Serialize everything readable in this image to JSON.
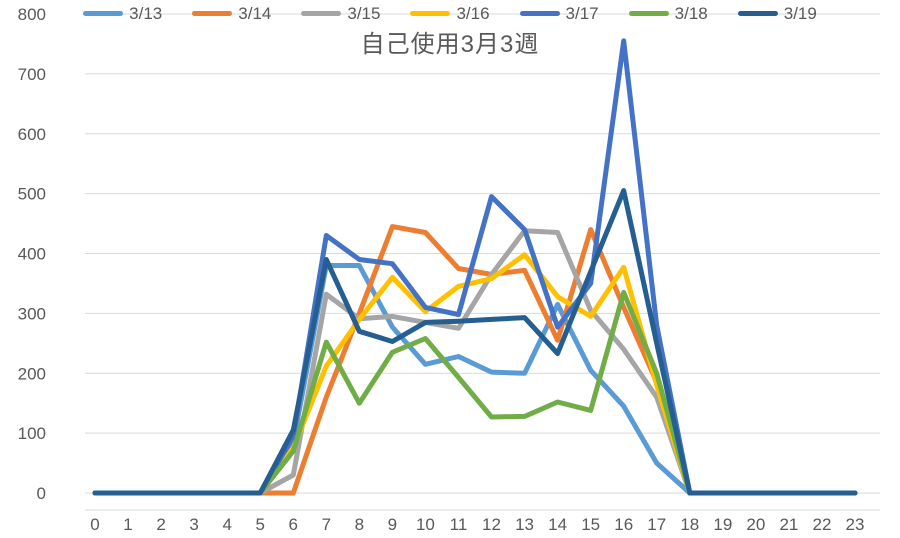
{
  "chart_data": {
    "type": "line",
    "title": "自己使用3月3週",
    "xlabel": "",
    "ylabel": "",
    "x": [
      0,
      1,
      2,
      3,
      4,
      5,
      6,
      7,
      8,
      9,
      10,
      11,
      12,
      13,
      14,
      15,
      16,
      17,
      18,
      19,
      20,
      21,
      22,
      23
    ],
    "ylim": [
      0,
      800
    ],
    "ytick_interval": 100,
    "grid": true,
    "legend_position": "top",
    "series": [
      {
        "name": "3/13",
        "color": "#5B9BD5",
        "values": [
          0,
          0,
          0,
          0,
          0,
          0,
          85,
          380,
          380,
          277,
          215,
          228,
          202,
          200,
          315,
          205,
          145,
          50,
          0,
          0,
          0,
          0,
          0,
          0
        ]
      },
      {
        "name": "3/14",
        "color": "#ED7D31",
        "values": [
          0,
          0,
          0,
          0,
          0,
          0,
          0,
          160,
          300,
          445,
          435,
          375,
          365,
          372,
          255,
          440,
          310,
          185,
          0,
          0,
          0,
          0,
          0,
          0
        ]
      },
      {
        "name": "3/15",
        "color": "#A5A5A5",
        "values": [
          0,
          0,
          0,
          0,
          0,
          0,
          30,
          332,
          291,
          295,
          285,
          275,
          365,
          438,
          435,
          305,
          240,
          160,
          0,
          0,
          0,
          0,
          0,
          0
        ]
      },
      {
        "name": "3/16",
        "color": "#FFC000",
        "values": [
          0,
          0,
          0,
          0,
          0,
          0,
          75,
          212,
          290,
          360,
          303,
          345,
          358,
          398,
          328,
          295,
          377,
          180,
          0,
          0,
          0,
          0,
          0,
          0
        ]
      },
      {
        "name": "3/17",
        "color": "#4472C4",
        "values": [
          0,
          0,
          0,
          0,
          0,
          0,
          95,
          430,
          390,
          383,
          310,
          298,
          495,
          440,
          277,
          350,
          755,
          280,
          0,
          0,
          0,
          0,
          0,
          0
        ]
      },
      {
        "name": "3/18",
        "color": "#70AD47",
        "values": [
          0,
          0,
          0,
          0,
          0,
          0,
          70,
          252,
          150,
          235,
          258,
          193,
          127,
          128,
          152,
          138,
          335,
          200,
          0,
          0,
          0,
          0,
          0,
          0
        ]
      },
      {
        "name": "3/19",
        "color": "#255E91",
        "values": [
          0,
          0,
          0,
          0,
          0,
          0,
          105,
          390,
          270,
          253,
          285,
          287,
          290,
          293,
          233,
          370,
          505,
          250,
          0,
          0,
          0,
          0,
          0,
          0
        ]
      }
    ]
  },
  "colors": {
    "axis_text": "#595959",
    "gridline": "#D9D9D9",
    "title_text": "#595959",
    "background": "#FFFFFF"
  }
}
